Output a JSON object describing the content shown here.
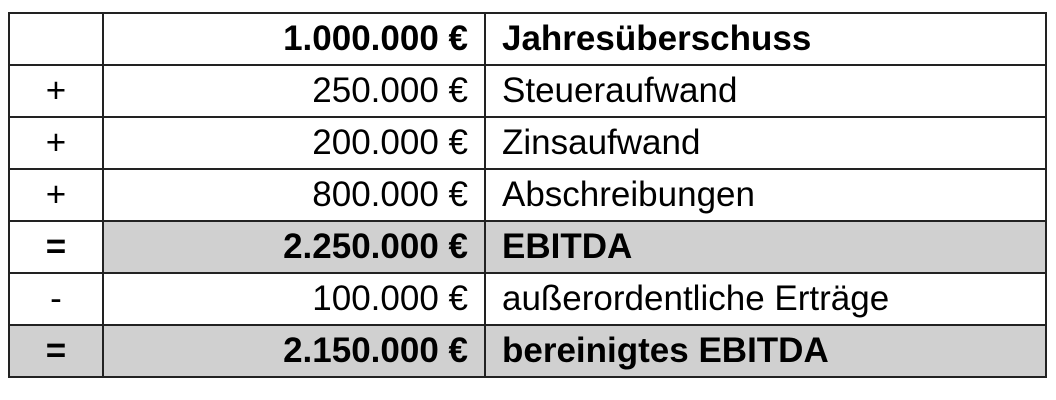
{
  "rows": [
    {
      "op": "",
      "amount": "1.000.000 €",
      "label": "Jahresüberschuss",
      "bold": true,
      "shade": "none"
    },
    {
      "op": "+",
      "amount": "250.000 €",
      "label": "Steueraufwand",
      "bold": false,
      "shade": "none"
    },
    {
      "op": "+",
      "amount": "200.000 €",
      "label": "Zinsaufwand",
      "bold": false,
      "shade": "none"
    },
    {
      "op": "+",
      "amount": "800.000 €",
      "label": "Abschreibungen",
      "bold": false,
      "shade": "none"
    },
    {
      "op": "=",
      "amount": "2.250.000 €",
      "label": "EBITDA",
      "bold": true,
      "shade": "amount-label"
    },
    {
      "op": "-",
      "amount": "100.000 €",
      "label": "außerordentliche Erträge",
      "bold": false,
      "shade": "none"
    },
    {
      "op": "=",
      "amount": "2.150.000 €",
      "label": "bereinigtes EBITDA",
      "bold": true,
      "shade": "all"
    }
  ],
  "colors": {
    "shade": "#d0d0d0",
    "border": "#222222"
  }
}
